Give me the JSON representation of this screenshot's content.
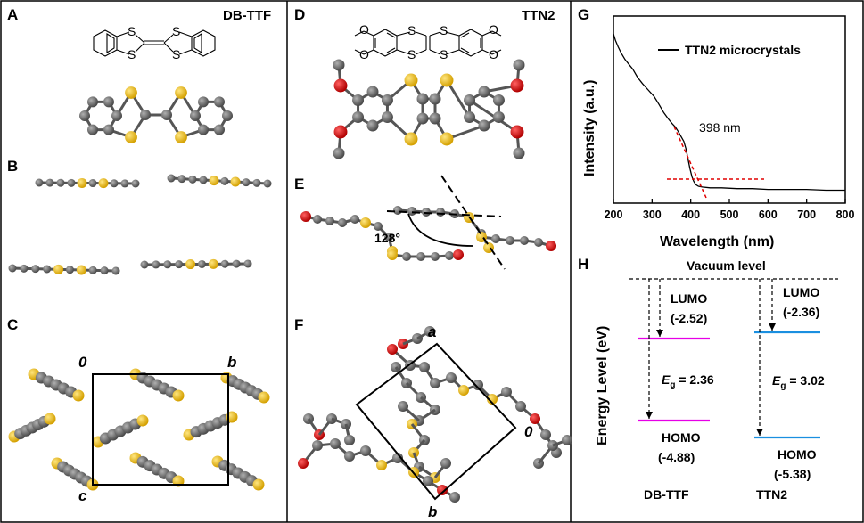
{
  "panels": {
    "A": {
      "label": "A",
      "title": "DB-TTF"
    },
    "B": {
      "label": "B"
    },
    "C": {
      "label": "C",
      "axis_0": "0",
      "axis_b": "b",
      "axis_c": "c"
    },
    "D": {
      "label": "D",
      "title": "TTN2"
    },
    "E": {
      "label": "E",
      "angle": "128°"
    },
    "F": {
      "label": "F",
      "axis_a": "a",
      "axis_0": "0",
      "axis_b": "b"
    },
    "G": {
      "label": "G"
    },
    "H": {
      "label": "H"
    }
  },
  "chart_data": {
    "type": "line",
    "xlabel": "Wavelength (nm)",
    "ylabel": "Intensity (a.u.)",
    "xlim": [
      200,
      800
    ],
    "x_ticks": [
      "200",
      "300",
      "400",
      "500",
      "600",
      "700",
      "800"
    ],
    "legend": "TTN2 microcrystals",
    "annotation": "398 nm",
    "series": [
      {
        "name": "TTN2 microcrystals",
        "color": "#000000",
        "x": [
          200,
          205,
          212,
          220,
          230,
          240,
          250,
          262,
          275,
          290,
          305,
          318,
          330,
          342,
          352,
          360,
          368,
          375,
          382,
          388,
          393,
          398,
          403,
          408,
          413,
          420,
          430,
          450,
          480,
          520,
          560,
          600,
          650,
          700,
          750,
          790,
          800
        ],
        "y": [
          1.0,
          0.96,
          0.92,
          0.88,
          0.84,
          0.81,
          0.78,
          0.73,
          0.69,
          0.65,
          0.61,
          0.56,
          0.51,
          0.47,
          0.44,
          0.42,
          0.39,
          0.36,
          0.33,
          0.28,
          0.22,
          0.16,
          0.11,
          0.08,
          0.06,
          0.05,
          0.045,
          0.04,
          0.04,
          0.035,
          0.035,
          0.03,
          0.03,
          0.03,
          0.025,
          0.025,
          0.025
        ]
      }
    ],
    "fit_lines_color": "#e00000"
  },
  "energy_diagram": {
    "vacuum_label": "Vacuum level",
    "ylabel": "Energy Level (eV)",
    "materials": [
      {
        "name": "DB-TTF",
        "color": "#e600e6",
        "lumo_label": "LUMO",
        "lumo_value": "(-2.52)",
        "homo_label": "HOMO",
        "homo_value": "(-4.88)",
        "eg_symbol": "E",
        "eg_sub": "g",
        "eg_value": " = 2.36"
      },
      {
        "name": "TTN2",
        "color": "#1a8fe0",
        "lumo_label": "LUMO",
        "lumo_value": "(-2.36)",
        "homo_label": "HOMO",
        "homo_value": "(-5.38)",
        "eg_symbol": "E",
        "eg_sub": "g",
        "eg_value": " = 3.02"
      }
    ]
  },
  "colors": {
    "carbon": "#6e6e6e",
    "sulfur": "#f0c419",
    "oxygen": "#e00000"
  }
}
